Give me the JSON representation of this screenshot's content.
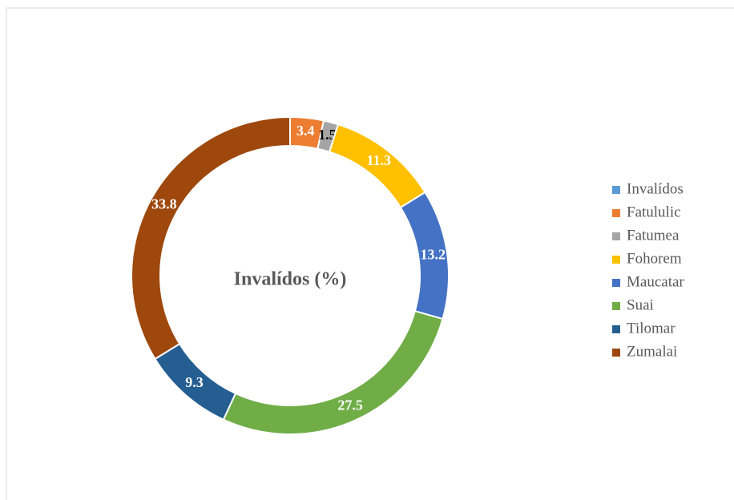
{
  "chart_data": {
    "type": "donut",
    "title": "Invalídos (%)",
    "categories": [
      "Invalídos",
      "Fatululic",
      "Fatumea",
      "Fohorem",
      "Maucatar",
      "Suai",
      "Tilomar",
      "Zumalai"
    ],
    "values": [
      0,
      3.4,
      1.5,
      11.3,
      13.2,
      27.5,
      9.3,
      33.8
    ],
    "colors": [
      "#5b9bd5",
      "#ed7d31",
      "#a5a5a5",
      "#ffc000",
      "#4472c4",
      "#70ad47",
      "#255e91",
      "#9e480e"
    ],
    "value_label_colors": [
      "#ffffff",
      "#ffffff",
      "#000000",
      "#ffffff",
      "#ffffff",
      "#ffffff",
      "#ffffff",
      "#ffffff"
    ],
    "legend": "right"
  }
}
